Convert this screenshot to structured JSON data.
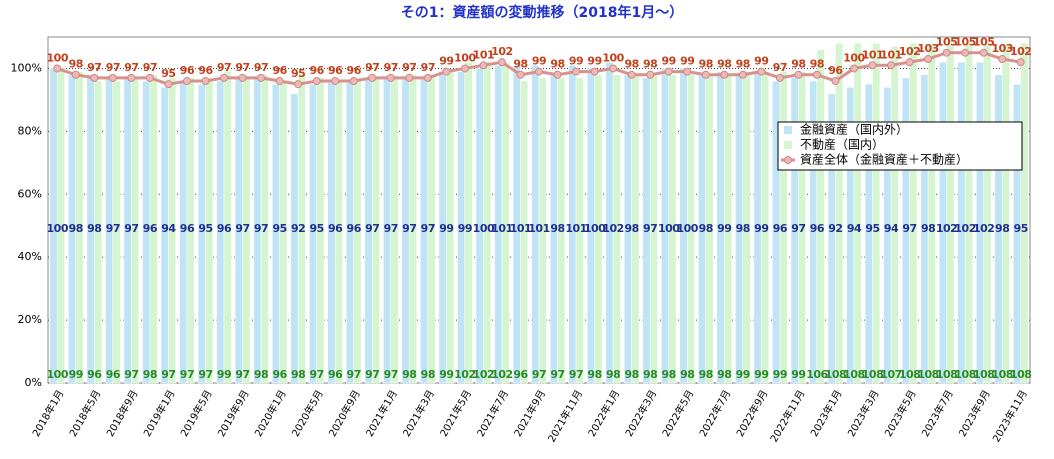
{
  "chart_data": {
    "type": "bar",
    "title": "その1：資産額の変動推移（2018年1月〜）",
    "categories": [
      "2018年1月",
      null,
      "2018年5月",
      null,
      "2018年9月",
      null,
      "2019年1月",
      null,
      "2019年5月",
      null,
      "2019年9月",
      null,
      "2020年1月",
      null,
      "2020年5月",
      null,
      "2020年9月",
      null,
      "2021年1月",
      null,
      "2021年3月",
      null,
      "2021年5月",
      null,
      "2021年7月",
      null,
      "2021年9月",
      null,
      "2021年11月",
      null,
      "2022年1月",
      null,
      "2022年3月",
      null,
      "2022年5月",
      null,
      "2022年7月",
      null,
      "2022年9月",
      null,
      "2022年11月",
      null,
      "2023年1月",
      null,
      "2023年3月",
      null,
      "2023年5月",
      null,
      "2023年7月",
      null,
      "2023年9月",
      null,
      "2023年11月"
    ],
    "series": [
      {
        "name": "金融資産（国内外）",
        "color": "#bfe4f5",
        "label_color": "#1f2f8f",
        "values": [
          100,
          98,
          98,
          97,
          97,
          96,
          94,
          96,
          95,
          96,
          97,
          97,
          95,
          92,
          95,
          96,
          96,
          97,
          97,
          97,
          97,
          99,
          99,
          100,
          101,
          101,
          101,
          98,
          101,
          100,
          102,
          98,
          97,
          100,
          100,
          98,
          99,
          98,
          99,
          96,
          97,
          96,
          92,
          94,
          95,
          94,
          97,
          98,
          102,
          102,
          102,
          98,
          95
        ]
      },
      {
        "name": "不動産（国内）",
        "color": "#d4f5d0",
        "label_color": "#2a8a2a",
        "values": [
          100,
          99,
          96,
          96,
          97,
          98,
          97,
          97,
          97,
          99,
          97,
          98,
          96,
          98,
          97,
          96,
          97,
          97,
          97,
          98,
          98,
          99,
          102,
          102,
          102,
          96,
          97,
          97,
          97,
          98,
          98,
          98,
          98,
          98,
          98,
          98,
          98,
          99,
          99,
          99,
          99,
          106,
          108,
          108,
          108,
          107,
          108,
          108,
          108,
          108,
          108,
          108,
          108
        ]
      },
      {
        "name": "資産全体（金融資産＋不動産）",
        "color": "#d9918b",
        "label_color": "#c4401a",
        "kind": "line",
        "values": [
          100,
          98,
          97,
          97,
          97,
          97,
          95,
          96,
          96,
          97,
          97,
          97,
          96,
          95,
          96,
          96,
          96,
          97,
          97,
          97,
          97,
          99,
          100,
          101,
          102,
          98,
          99,
          98,
          99,
          99,
          100,
          98,
          98,
          99,
          99,
          98,
          98,
          98,
          99,
          97,
          98,
          98,
          96,
          100,
          101,
          101,
          102,
          103,
          105,
          105,
          105,
          103,
          102
        ]
      }
    ],
    "ylim": [
      0,
      110
    ],
    "yticks": [
      {
        "value": 0,
        "label": "0%"
      },
      {
        "value": 20,
        "label": "20%"
      },
      {
        "value": 40,
        "label": "40%"
      },
      {
        "value": 60,
        "label": "60%"
      },
      {
        "value": 80,
        "label": "80%"
      },
      {
        "value": 100,
        "label": "100%"
      }
    ],
    "grid": true,
    "legend": "upper right"
  }
}
